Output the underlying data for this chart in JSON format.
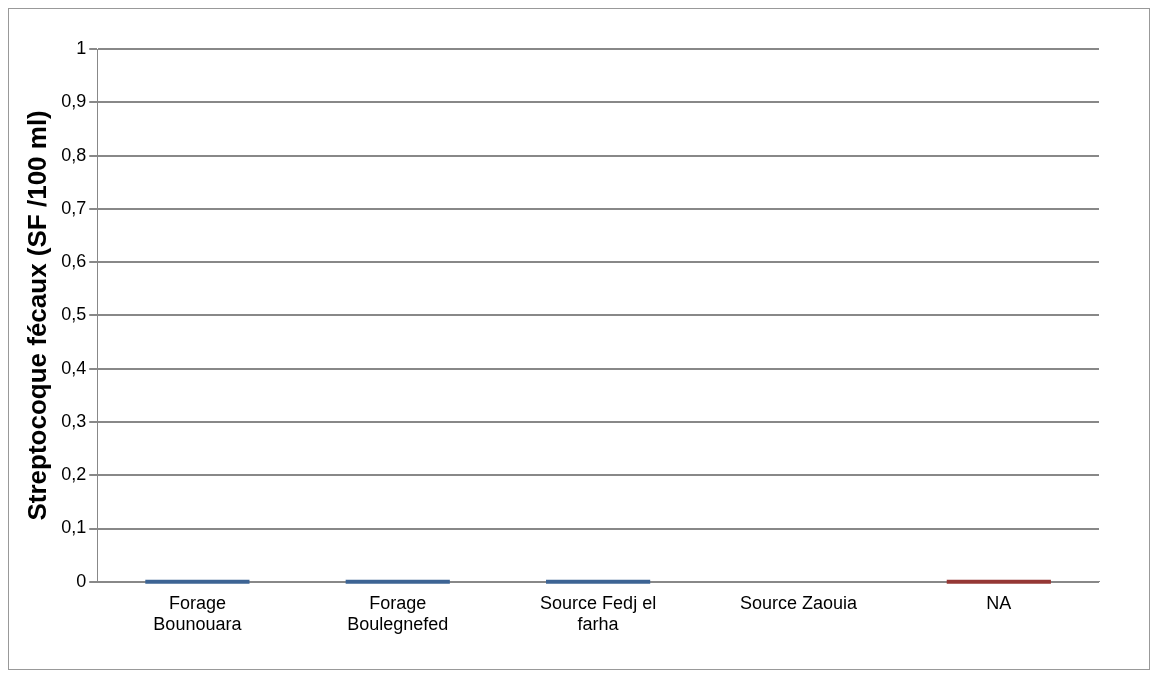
{
  "chart_data": {
    "type": "bar",
    "ylabel": "Streptocoque fécaux (SF /100 ml)",
    "categories": [
      "Forage Bounouara",
      "Forage Boulegnefed",
      "Source Fedj el farha",
      "Source Zaouia",
      "NA"
    ],
    "values": [
      0,
      0,
      0,
      null,
      0
    ],
    "colors": [
      "#3d6494",
      "#3d6494",
      "#3d6494",
      "#3d6494",
      "#953735"
    ],
    "ylim": [
      0,
      1
    ],
    "yticks": [
      0,
      {
        "value": 0.1,
        "label": "0,1"
      },
      {
        "value": 0.2,
        "label": "0,2"
      },
      {
        "value": 0.3,
        "label": "0,3"
      },
      {
        "value": 0.4,
        "label": "0,4"
      },
      {
        "value": 0.5,
        "label": "0,5"
      },
      {
        "value": 0.6,
        "label": "0,6"
      },
      {
        "value": 0.7,
        "label": "0,7"
      },
      {
        "value": 0.8,
        "label": "0,8"
      },
      {
        "value": 0.9,
        "label": "0,9"
      },
      1
    ],
    "grid": "y",
    "legend": false
  }
}
